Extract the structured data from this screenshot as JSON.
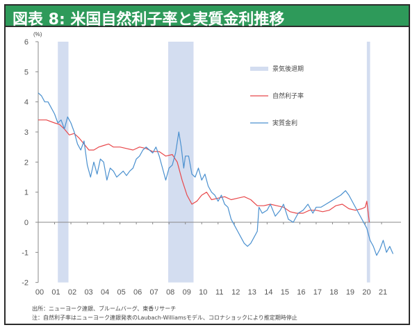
{
  "title": "図表 8: 米国自然利子率と実質金利推移",
  "notes": {
    "source": "出所：ニューヨーク連銀、ブルームバーグ、東香リサーチ",
    "note": "注：自然利子率はニューヨーク連銀発表のLaubach-Williamsモデル、コロナショックにより推定期時停止"
  },
  "colors": {
    "title_bg": "#2e9a5a",
    "natural_rate": "#e8474a",
    "real_rate": "#4a90cf",
    "recession": "#d3ddf0"
  },
  "chart_data": {
    "type": "line",
    "title": "米国自然利子率と実質金利推移",
    "unit_label": "(%)",
    "xlabel": "",
    "ylabel": "(%)",
    "ylim": [
      -2,
      6
    ],
    "yticks": [
      -2,
      -1,
      0,
      1,
      2,
      3,
      4,
      5,
      6
    ],
    "xticks": [
      "00",
      "01",
      "02",
      "03",
      "04",
      "05",
      "06",
      "07",
      "08",
      "09",
      "10",
      "11",
      "12",
      "13",
      "14",
      "15",
      "16",
      "17",
      "18",
      "19",
      "20",
      "21"
    ],
    "grid": false,
    "legend_position": "upper right inside",
    "legend": [
      {
        "label": "景気後退期",
        "type": "band"
      },
      {
        "label": "自然利子率",
        "type": "line"
      },
      {
        "label": "実質金利",
        "type": "line"
      }
    ],
    "recessions": [
      {
        "start": 2001.2,
        "end": 2001.85
      },
      {
        "start": 2007.95,
        "end": 2009.5
      },
      {
        "start": 2020.1,
        "end": 2020.3
      }
    ],
    "series": [
      {
        "name": "自然利子率",
        "x": [
          2000.0,
          2000.5,
          2001.0,
          2001.3,
          2001.6,
          2001.9,
          2002.2,
          2002.5,
          2002.8,
          2003.1,
          2003.4,
          2003.7,
          2004.0,
          2004.3,
          2004.6,
          2005.0,
          2005.4,
          2005.8,
          2006.2,
          2006.6,
          2007.0,
          2007.4,
          2007.8,
          2008.2,
          2008.5,
          2008.8,
          2009.1,
          2009.4,
          2009.7,
          2010.0,
          2010.3,
          2010.6,
          2011.0,
          2011.4,
          2011.8,
          2012.2,
          2012.6,
          2013.0,
          2013.4,
          2013.8,
          2014.2,
          2014.6,
          2015.0,
          2015.4,
          2015.8,
          2016.2,
          2016.6,
          2017.0,
          2017.4,
          2017.8,
          2018.2,
          2018.6,
          2019.0,
          2019.4,
          2019.8,
          2020.0,
          2020.1,
          2020.25
        ],
        "values": [
          3.4,
          3.4,
          3.3,
          3.25,
          3.1,
          2.9,
          2.95,
          2.8,
          2.6,
          2.4,
          2.4,
          2.5,
          2.55,
          2.6,
          2.5,
          2.5,
          2.45,
          2.4,
          2.5,
          2.45,
          2.35,
          2.35,
          2.2,
          2.25,
          2.0,
          1.4,
          0.9,
          0.6,
          0.7,
          0.9,
          1.0,
          0.75,
          0.8,
          0.85,
          0.75,
          0.8,
          0.85,
          0.75,
          0.55,
          0.55,
          0.6,
          0.55,
          0.5,
          0.35,
          0.3,
          0.3,
          0.4,
          0.4,
          0.35,
          0.4,
          0.55,
          0.6,
          0.45,
          0.4,
          0.45,
          0.5,
          0.7,
          0.0
        ]
      },
      {
        "name": "実質金利",
        "x": [
          2000.0,
          2000.2,
          2000.4,
          2000.6,
          2000.8,
          2001.0,
          2001.2,
          2001.4,
          2001.6,
          2001.8,
          2002.0,
          2002.2,
          2002.4,
          2002.6,
          2002.8,
          2003.0,
          2003.2,
          2003.4,
          2003.6,
          2003.8,
          2004.0,
          2004.2,
          2004.4,
          2004.6,
          2004.8,
          2005.0,
          2005.2,
          2005.4,
          2005.6,
          2005.8,
          2006.0,
          2006.2,
          2006.4,
          2006.6,
          2006.8,
          2007.0,
          2007.2,
          2007.4,
          2007.6,
          2007.8,
          2008.0,
          2008.2,
          2008.4,
          2008.6,
          2008.75,
          2008.9,
          2009.0,
          2009.2,
          2009.4,
          2009.6,
          2009.8,
          2010.0,
          2010.2,
          2010.4,
          2010.6,
          2010.8,
          2011.0,
          2011.2,
          2011.4,
          2011.6,
          2011.8,
          2012.0,
          2012.2,
          2012.4,
          2012.6,
          2012.8,
          2013.0,
          2013.2,
          2013.4,
          2013.5,
          2013.7,
          2014.0,
          2014.2,
          2014.5,
          2014.8,
          2015.0,
          2015.3,
          2015.6,
          2015.9,
          2016.2,
          2016.5,
          2016.8,
          2017.0,
          2017.3,
          2017.6,
          2017.9,
          2018.2,
          2018.5,
          2018.8,
          2019.0,
          2019.3,
          2019.6,
          2019.9,
          2020.1,
          2020.3,
          2020.5,
          2020.7,
          2020.9,
          2021.1,
          2021.3,
          2021.5,
          2021.7
        ],
        "values": [
          4.3,
          4.2,
          4.0,
          4.0,
          3.8,
          3.6,
          3.3,
          3.4,
          3.1,
          3.5,
          3.3,
          3.0,
          2.6,
          2.4,
          2.7,
          1.9,
          1.5,
          2.0,
          1.6,
          2.1,
          2.0,
          1.4,
          1.8,
          1.7,
          1.5,
          1.6,
          1.7,
          1.55,
          1.7,
          1.8,
          2.1,
          2.2,
          2.4,
          2.5,
          2.4,
          2.3,
          2.5,
          2.2,
          1.8,
          1.4,
          1.8,
          1.9,
          2.3,
          3.0,
          2.5,
          1.8,
          2.2,
          2.2,
          1.6,
          1.5,
          1.8,
          1.4,
          1.6,
          1.2,
          1.0,
          0.9,
          0.7,
          0.9,
          0.6,
          0.5,
          0.1,
          -0.1,
          -0.3,
          -0.5,
          -0.7,
          -0.8,
          -0.7,
          -0.5,
          -0.3,
          0.5,
          0.3,
          0.4,
          0.6,
          0.2,
          0.4,
          0.6,
          0.1,
          0.0,
          0.3,
          0.4,
          0.6,
          0.3,
          0.5,
          0.5,
          0.6,
          0.7,
          0.8,
          0.9,
          1.05,
          0.9,
          0.6,
          0.3,
          0.0,
          -0.2,
          -0.6,
          -0.8,
          -1.1,
          -0.9,
          -0.6,
          -1.0,
          -0.8,
          -1.05
        ]
      }
    ]
  }
}
